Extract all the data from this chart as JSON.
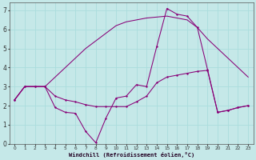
{
  "xlabel": "Windchill (Refroidissement éolien,°C)",
  "bg_color": "#c5e8e8",
  "line_color": "#880077",
  "grid_color": "#aadddd",
  "xlim": [
    -0.5,
    23.5
  ],
  "ylim": [
    0,
    7.4
  ],
  "xticks": [
    0,
    1,
    2,
    3,
    4,
    5,
    6,
    7,
    8,
    9,
    10,
    11,
    12,
    13,
    14,
    15,
    16,
    17,
    18,
    19,
    20,
    21,
    22,
    23
  ],
  "yticks": [
    0,
    1,
    2,
    3,
    4,
    5,
    6,
    7
  ],
  "line1_x": [
    0,
    1,
    2,
    3,
    4,
    5,
    6,
    7,
    8,
    9,
    10,
    11,
    12,
    13,
    14,
    15,
    16,
    17,
    18,
    19,
    20,
    21,
    22,
    23
  ],
  "line1_y": [
    2.3,
    3.0,
    3.0,
    3.0,
    2.5,
    2.3,
    2.2,
    2.05,
    1.95,
    1.95,
    1.95,
    1.95,
    2.2,
    2.5,
    3.2,
    3.5,
    3.6,
    3.7,
    3.8,
    3.85,
    1.65,
    1.75,
    1.9,
    2.0
  ],
  "line2_x": [
    0,
    1,
    2,
    3,
    4,
    5,
    6,
    7,
    8,
    9,
    10,
    11,
    12,
    13,
    14,
    15,
    16,
    17,
    18,
    19,
    20,
    21,
    22,
    23
  ],
  "line2_y": [
    2.3,
    3.0,
    3.0,
    3.0,
    3.5,
    4.0,
    4.5,
    5.0,
    5.4,
    5.8,
    6.2,
    6.4,
    6.5,
    6.6,
    6.65,
    6.7,
    6.6,
    6.5,
    6.1,
    5.5,
    5.0,
    4.5,
    4.0,
    3.5
  ],
  "line3_x": [
    0,
    1,
    2,
    3,
    4,
    5,
    6,
    7,
    8,
    9,
    10,
    11,
    12,
    13,
    14,
    15,
    16,
    17,
    18,
    19,
    20,
    21,
    22,
    23
  ],
  "line3_y": [
    2.3,
    3.0,
    3.0,
    3.0,
    1.9,
    1.65,
    1.6,
    0.65,
    0.05,
    1.35,
    2.4,
    2.5,
    3.1,
    3.0,
    5.1,
    7.1,
    6.8,
    6.7,
    6.1,
    3.9,
    1.65,
    1.75,
    1.9,
    2.0
  ]
}
